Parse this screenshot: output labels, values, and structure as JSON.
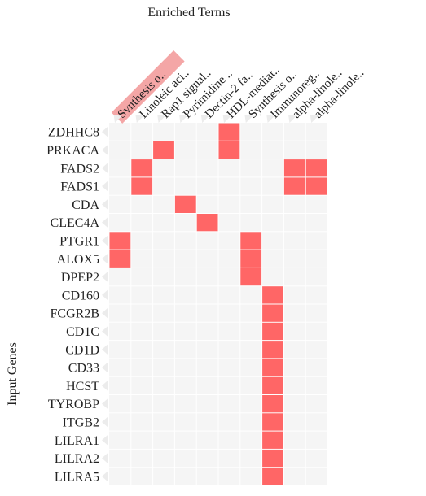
{
  "chart_data": {
    "type": "heatmap",
    "title": "Enriched Terms",
    "xlabel": "",
    "ylabel": "Input Genes",
    "x_categories": [
      "Synthesis o..",
      "Linoleic aci..",
      "Rap1 signal..",
      "Pyrimidine ..",
      "Dectin-2 fa..",
      "HDL-mediat..",
      "Synthesis o..",
      "Immunoreg..",
      "alpha-linole..",
      "alpha-linole.."
    ],
    "y_categories": [
      "ZDHHC8",
      "PRKACA",
      "FADS2",
      "FADS1",
      "CDA",
      "CLEC4A",
      "PTGR1",
      "ALOX5",
      "DPEP2",
      "CD160",
      "FCGR2B",
      "CD1C",
      "CD1D",
      "CD33",
      "HCST",
      "TYROBP",
      "ITGB2",
      "LILRA1",
      "LILRA2",
      "LILRA5"
    ],
    "cells": [
      {
        "gene": "ZDHHC8",
        "term_index": 5
      },
      {
        "gene": "PRKACA",
        "term_index": 2
      },
      {
        "gene": "PRKACA",
        "term_index": 5
      },
      {
        "gene": "FADS2",
        "term_index": 1
      },
      {
        "gene": "FADS2",
        "term_index": 8
      },
      {
        "gene": "FADS2",
        "term_index": 9
      },
      {
        "gene": "FADS1",
        "term_index": 1
      },
      {
        "gene": "FADS1",
        "term_index": 8
      },
      {
        "gene": "FADS1",
        "term_index": 9
      },
      {
        "gene": "CDA",
        "term_index": 3
      },
      {
        "gene": "CLEC4A",
        "term_index": 4
      },
      {
        "gene": "PTGR1",
        "term_index": 0
      },
      {
        "gene": "PTGR1",
        "term_index": 6
      },
      {
        "gene": "ALOX5",
        "term_index": 0
      },
      {
        "gene": "ALOX5",
        "term_index": 6
      },
      {
        "gene": "DPEP2",
        "term_index": 6
      },
      {
        "gene": "CD160",
        "term_index": 7
      },
      {
        "gene": "FCGR2B",
        "term_index": 7
      },
      {
        "gene": "CD1C",
        "term_index": 7
      },
      {
        "gene": "CD1D",
        "term_index": 7
      },
      {
        "gene": "CD33",
        "term_index": 7
      },
      {
        "gene": "HCST",
        "term_index": 7
      },
      {
        "gene": "TYROBP",
        "term_index": 7
      },
      {
        "gene": "ITGB2",
        "term_index": 7
      },
      {
        "gene": "LILRA1",
        "term_index": 7
      },
      {
        "gene": "LILRA2",
        "term_index": 7
      },
      {
        "gene": "LILRA5",
        "term_index": 7
      }
    ],
    "colors": {
      "filled": "#ff6666",
      "background": "#f5f5f5",
      "label_highlight": "#f4a6a6",
      "grid": "#ffffff"
    },
    "grid": true,
    "legend": "none"
  }
}
